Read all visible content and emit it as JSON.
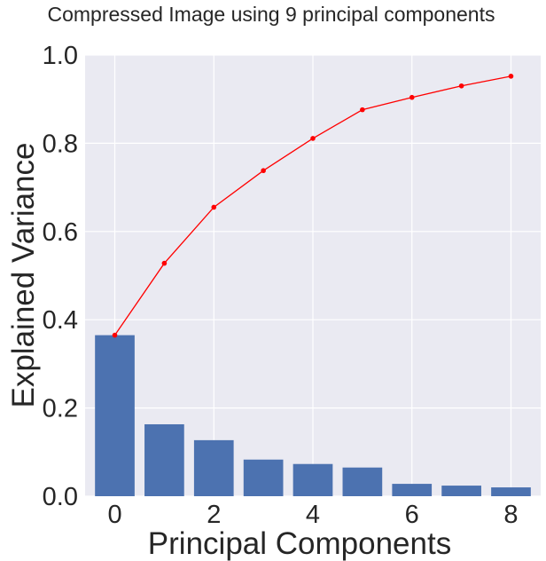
{
  "chart_data": {
    "type": "bar",
    "title": "Compressed Image using 9 principal components",
    "xlabel": "Principal Components",
    "ylabel": "Explained Variance",
    "x": [
      0,
      1,
      2,
      3,
      4,
      5,
      6,
      7,
      8
    ],
    "xlim": [
      -0.6,
      8.6
    ],
    "ylim": [
      0,
      1.0
    ],
    "xticks": [
      0,
      2,
      4,
      6,
      8
    ],
    "yticks": [
      0.0,
      0.2,
      0.4,
      0.6,
      0.8,
      1.0
    ],
    "xtick_labels": [
      "0",
      "2",
      "4",
      "6",
      "8"
    ],
    "ytick_labels": [
      "0.0",
      "0.2",
      "0.4",
      "0.6",
      "0.8",
      "1.0"
    ],
    "grid": true,
    "series": [
      {
        "type": "bar",
        "values": [
          0.365,
          0.163,
          0.127,
          0.083,
          0.073,
          0.065,
          0.028,
          0.024,
          0.02
        ],
        "color": "#4c72b0"
      },
      {
        "type": "line",
        "values": [
          0.365,
          0.528,
          0.655,
          0.738,
          0.811,
          0.876,
          0.904,
          0.93,
          0.952
        ],
        "color": "#ff0000",
        "marker": "dot"
      }
    ],
    "background": "#eaeaf2"
  }
}
